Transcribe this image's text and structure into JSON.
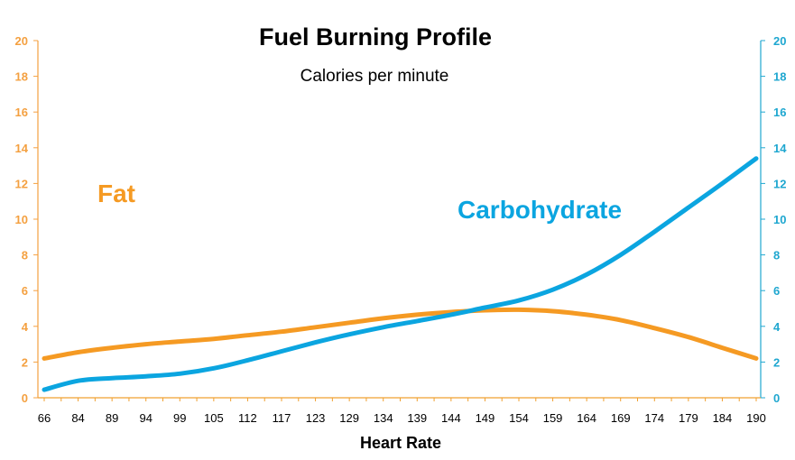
{
  "chart_data": {
    "type": "line",
    "title": "Fuel Burning Profile",
    "subtitle": "Calories per minute",
    "xlabel": "Heart Rate",
    "categories": [
      "66",
      "84",
      "89",
      "94",
      "99",
      "105",
      "112",
      "117",
      "123",
      "129",
      "134",
      "139",
      "144",
      "149",
      "154",
      "159",
      "164",
      "169",
      "174",
      "179",
      "184",
      "190"
    ],
    "ylim": [
      0,
      20
    ],
    "yticks": [
      0,
      2,
      4,
      6,
      8,
      10,
      12,
      14,
      16,
      18,
      20
    ],
    "ytick_labels": [
      "0",
      "2",
      "4",
      "6",
      "8",
      "10",
      "12",
      "14",
      "16",
      "18",
      "20"
    ],
    "colors": {
      "left_axis": "#F4A040",
      "right_axis": "#1FA7D0",
      "x_axis": "#F0A030"
    },
    "series": [
      {
        "name": "Fat",
        "label_text": "Fat",
        "color": "#F59A23",
        "values": [
          2.2,
          2.55,
          2.8,
          3.0,
          3.15,
          3.3,
          3.5,
          3.7,
          3.95,
          4.2,
          4.45,
          4.65,
          4.8,
          4.9,
          4.93,
          4.85,
          4.65,
          4.35,
          3.9,
          3.4,
          2.8,
          2.2
        ]
      },
      {
        "name": "Carbohydrate",
        "label_text": "Carbohydrate",
        "color": "#0BA5E0",
        "values": [
          0.45,
          0.95,
          1.1,
          1.2,
          1.35,
          1.65,
          2.1,
          2.6,
          3.1,
          3.55,
          3.95,
          4.3,
          4.65,
          5.05,
          5.45,
          6.05,
          6.9,
          8.0,
          9.3,
          10.65,
          12.0,
          13.4
        ]
      }
    ]
  }
}
